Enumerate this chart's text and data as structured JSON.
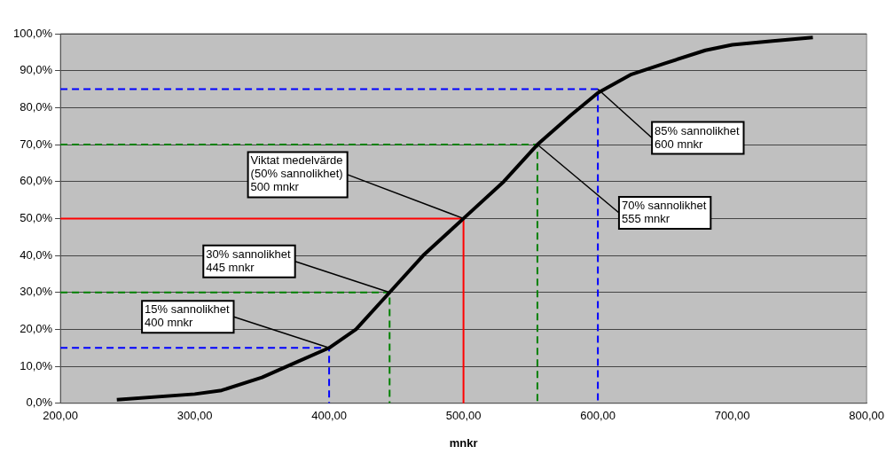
{
  "chart_data": {
    "type": "line",
    "xlabel": "mnkr",
    "xlim": [
      200,
      800
    ],
    "xticks": [
      {
        "value": 200,
        "label": "200,00"
      },
      {
        "value": 300,
        "label": "300,00"
      },
      {
        "value": 400,
        "label": "400,00"
      },
      {
        "value": 500,
        "label": "500,00"
      },
      {
        "value": 600,
        "label": "600,00"
      },
      {
        "value": 700,
        "label": "700,00"
      },
      {
        "value": 800,
        "label": "800,00"
      }
    ],
    "ylim": [
      0,
      100
    ],
    "yticks": [
      {
        "value": 0,
        "label": "0,0%"
      },
      {
        "value": 10,
        "label": "10,0%"
      },
      {
        "value": 20,
        "label": "20,0%"
      },
      {
        "value": 30,
        "label": "30,0%"
      },
      {
        "value": 40,
        "label": "40,0%"
      },
      {
        "value": 50,
        "label": "50,0%"
      },
      {
        "value": 60,
        "label": "60,0%"
      },
      {
        "value": 70,
        "label": "70,0%"
      },
      {
        "value": 80,
        "label": "80,0%"
      },
      {
        "value": 90,
        "label": "90,0%"
      },
      {
        "value": 100,
        "label": "100,0%"
      }
    ],
    "grid": "y",
    "legend": false,
    "marker": "none",
    "series": [
      {
        "color": "#000000",
        "line_style": "solid",
        "x": [
          242,
          300,
          320,
          350,
          375,
          400,
          420,
          445,
          470,
          500,
          530,
          555,
          580,
          600,
          625,
          650,
          680,
          700,
          730,
          760
        ],
        "values": [
          1,
          2.5,
          3.5,
          7,
          11,
          15,
          20,
          30,
          40,
          50,
          60,
          70,
          78,
          84,
          89,
          92,
          95.5,
          97,
          98,
          99
        ]
      },
      {
        "color": "#0000ff",
        "line_style": "dashed",
        "x": [
          200,
          400,
          400
        ],
        "values": [
          15,
          15,
          0
        ]
      },
      {
        "color": "#008000",
        "line_style": "dashed",
        "x": [
          200,
          445,
          445
        ],
        "values": [
          30,
          30,
          0
        ]
      },
      {
        "color": "#ff0000",
        "line_style": "solid",
        "x": [
          200,
          500,
          500
        ],
        "values": [
          50,
          50,
          0
        ]
      },
      {
        "color": "#008000",
        "line_style": "dashed",
        "x": [
          200,
          555,
          555
        ],
        "values": [
          70,
          70,
          0
        ]
      },
      {
        "color": "#0000ff",
        "line_style": "dashed",
        "x": [
          200,
          600,
          600
        ],
        "values": [
          85,
          85,
          0
        ]
      }
    ],
    "annotations": [
      {
        "text": "15% sannolikhet\n400 mnkr",
        "x": 400,
        "y": 15
      },
      {
        "text": "30% sannolikhet\n445 mnkr",
        "x": 445,
        "y": 30
      },
      {
        "text": "Viktat medelvärde\n(50% sannolikhet)\n500 mnkr",
        "x": 500,
        "y": 50
      },
      {
        "text": "85% sannolikhet\n600 mnkr",
        "x": 600,
        "y": 85
      },
      {
        "text": "70% sannolikhet\n555 mnkr",
        "x": 555,
        "y": 70
      }
    ]
  }
}
